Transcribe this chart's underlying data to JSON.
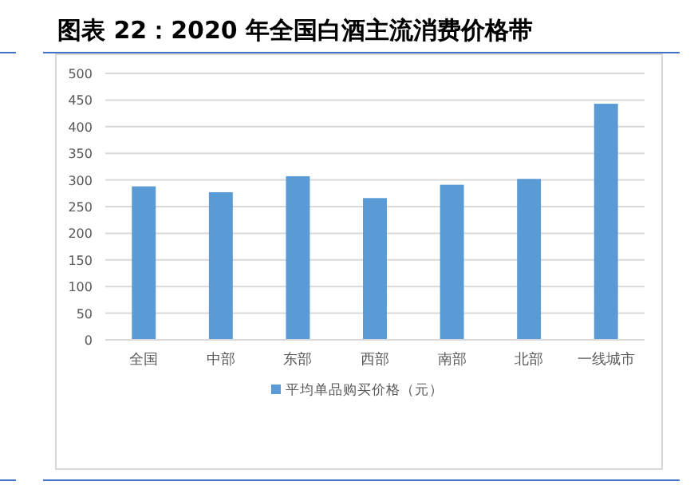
{
  "chart_data": {
    "type": "bar",
    "title": "图表 22：2020 年全国白酒主流消费价格带",
    "categories": [
      "全国",
      "中部",
      "东部",
      "西部",
      "南部",
      "北部",
      "一线城市"
    ],
    "series": [
      {
        "name": "平均单品购买价格（元）",
        "color": "#5b9bd5",
        "values": [
          288,
          277,
          307,
          266,
          291,
          302,
          443
        ]
      }
    ],
    "ylim": [
      0,
      500
    ],
    "yticks": [
      0,
      50,
      100,
      150,
      200,
      250,
      300,
      350,
      400,
      450,
      500
    ],
    "grid": "y",
    "legend": "bottom"
  }
}
